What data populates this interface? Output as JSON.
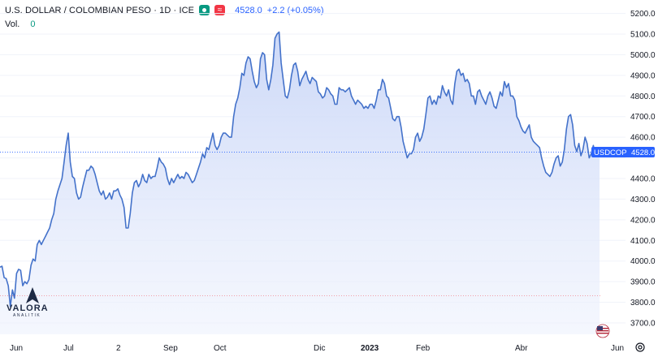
{
  "header": {
    "title": "U.S. DOLLAR / COLOMBIAN PESO · 1D · ICE",
    "price": "4528.0",
    "change": "+2.2 (+0.05%)",
    "vol_label": "Vol.",
    "vol_value": "0",
    "market_icon": "market-open-icon",
    "wave_icon": "wave-icon"
  },
  "badge": {
    "symbol": "USDCOP",
    "price": "4528.0"
  },
  "logo": {
    "main": "VALORA",
    "sub": "ANALITIK"
  },
  "colors": {
    "line": "#4472ca",
    "fill_top": "#c9d6f7",
    "fill_bottom": "#eef2fd",
    "badge": "#2962ff",
    "axis_text": "#131722"
  },
  "chart_data": {
    "type": "area",
    "title": "U.S. DOLLAR / COLOMBIAN PESO · 1D · ICE",
    "x_ticks": [
      "Jun",
      "Jul",
      "2",
      "Sep",
      "Oct",
      "Dic",
      "2023",
      "Feb",
      "Abr",
      "Jun"
    ],
    "y_ticks": [
      3700,
      3800,
      3900,
      4000,
      4100,
      4200,
      4300,
      4400,
      4500,
      4600,
      4700,
      4800,
      4900,
      5000,
      5100,
      5200
    ],
    "y_tick_labels": [
      "3700.0",
      "3800.0",
      "3900.0",
      "4000.0",
      "4100.0",
      "4200.0",
      "4300.0",
      "4400.0",
      "4500.0",
      "4600.0",
      "4700.0",
      "4800.0",
      "4900.0",
      "5000.0",
      "5100.0",
      "5200.0"
    ],
    "ylim": [
      3650,
      5240
    ],
    "last_price": 4528.0,
    "series": [
      {
        "values": [
          3970,
          3975,
          3920,
          3915,
          3880,
          3780,
          3860,
          3820,
          3940,
          3960,
          3955,
          3880,
          3900,
          3890,
          3910,
          3980,
          4010,
          4000,
          4080,
          4100,
          4080,
          4100,
          4120,
          4140,
          4160,
          4200,
          4230,
          4300,
          4340,
          4370,
          4400,
          4480,
          4560,
          4620,
          4480,
          4410,
          4400,
          4330,
          4300,
          4310,
          4360,
          4400,
          4440,
          4440,
          4460,
          4450,
          4420,
          4380,
          4340,
          4320,
          4340,
          4300,
          4310,
          4330,
          4300,
          4340,
          4340,
          4350,
          4320,
          4300,
          4260,
          4160,
          4160,
          4230,
          4330,
          4380,
          4390,
          4360,
          4380,
          4420,
          4390,
          4380,
          4420,
          4400,
          4410,
          4410,
          4450,
          4500,
          4480,
          4470,
          4450,
          4400,
          4370,
          4400,
          4380,
          4400,
          4420,
          4400,
          4410,
          4400,
          4430,
          4420,
          4400,
          4380,
          4390,
          4420,
          4450,
          4480,
          4520,
          4500,
          4550,
          4540,
          4580,
          4620,
          4560,
          4540,
          4560,
          4600,
          4620,
          4620,
          4610,
          4600,
          4600,
          4700,
          4760,
          4790,
          4840,
          4910,
          4900,
          4960,
          4990,
          4980,
          4920,
          4870,
          4840,
          4860,
          4980,
          5010,
          5000,
          4880,
          4830,
          4880,
          4950,
          5080,
          5100,
          5110,
          4960,
          4880,
          4800,
          4790,
          4830,
          4900,
          4950,
          4960,
          4920,
          4850,
          4880,
          4900,
          4920,
          4880,
          4860,
          4890,
          4880,
          4870,
          4820,
          4810,
          4790,
          4800,
          4840,
          4830,
          4810,
          4800,
          4760,
          4760,
          4840,
          4830,
          4830,
          4820,
          4830,
          4840,
          4800,
          4780,
          4760,
          4780,
          4770,
          4760,
          4740,
          4750,
          4740,
          4760,
          4760,
          4740,
          4780,
          4830,
          4830,
          4880,
          4860,
          4800,
          4790,
          4740,
          4690,
          4680,
          4700,
          4700,
          4650,
          4580,
          4540,
          4500,
          4520,
          4520,
          4540,
          4600,
          4620,
          4580,
          4600,
          4640,
          4710,
          4790,
          4800,
          4760,
          4780,
          4760,
          4800,
          4790,
          4850,
          4820,
          4800,
          4830,
          4780,
          4760,
          4860,
          4920,
          4930,
          4900,
          4910,
          4870,
          4880,
          4860,
          4800,
          4800,
          4760,
          4820,
          4830,
          4800,
          4780,
          4760,
          4800,
          4820,
          4790,
          4750,
          4740,
          4780,
          4820,
          4800,
          4870,
          4840,
          4860,
          4800,
          4800,
          4780,
          4700,
          4680,
          4650,
          4630,
          4620,
          4640,
          4660,
          4600,
          4580,
          4570,
          4560,
          4550,
          4500,
          4460,
          4430,
          4420,
          4410,
          4430,
          4470,
          4500,
          4510,
          4460,
          4480,
          4540,
          4640,
          4700,
          4710,
          4660,
          4560,
          4530,
          4570,
          4510,
          4540,
          4600,
          4570,
          4500,
          4520,
          4560,
          4510,
          4520,
          4528
        ]
      }
    ]
  }
}
